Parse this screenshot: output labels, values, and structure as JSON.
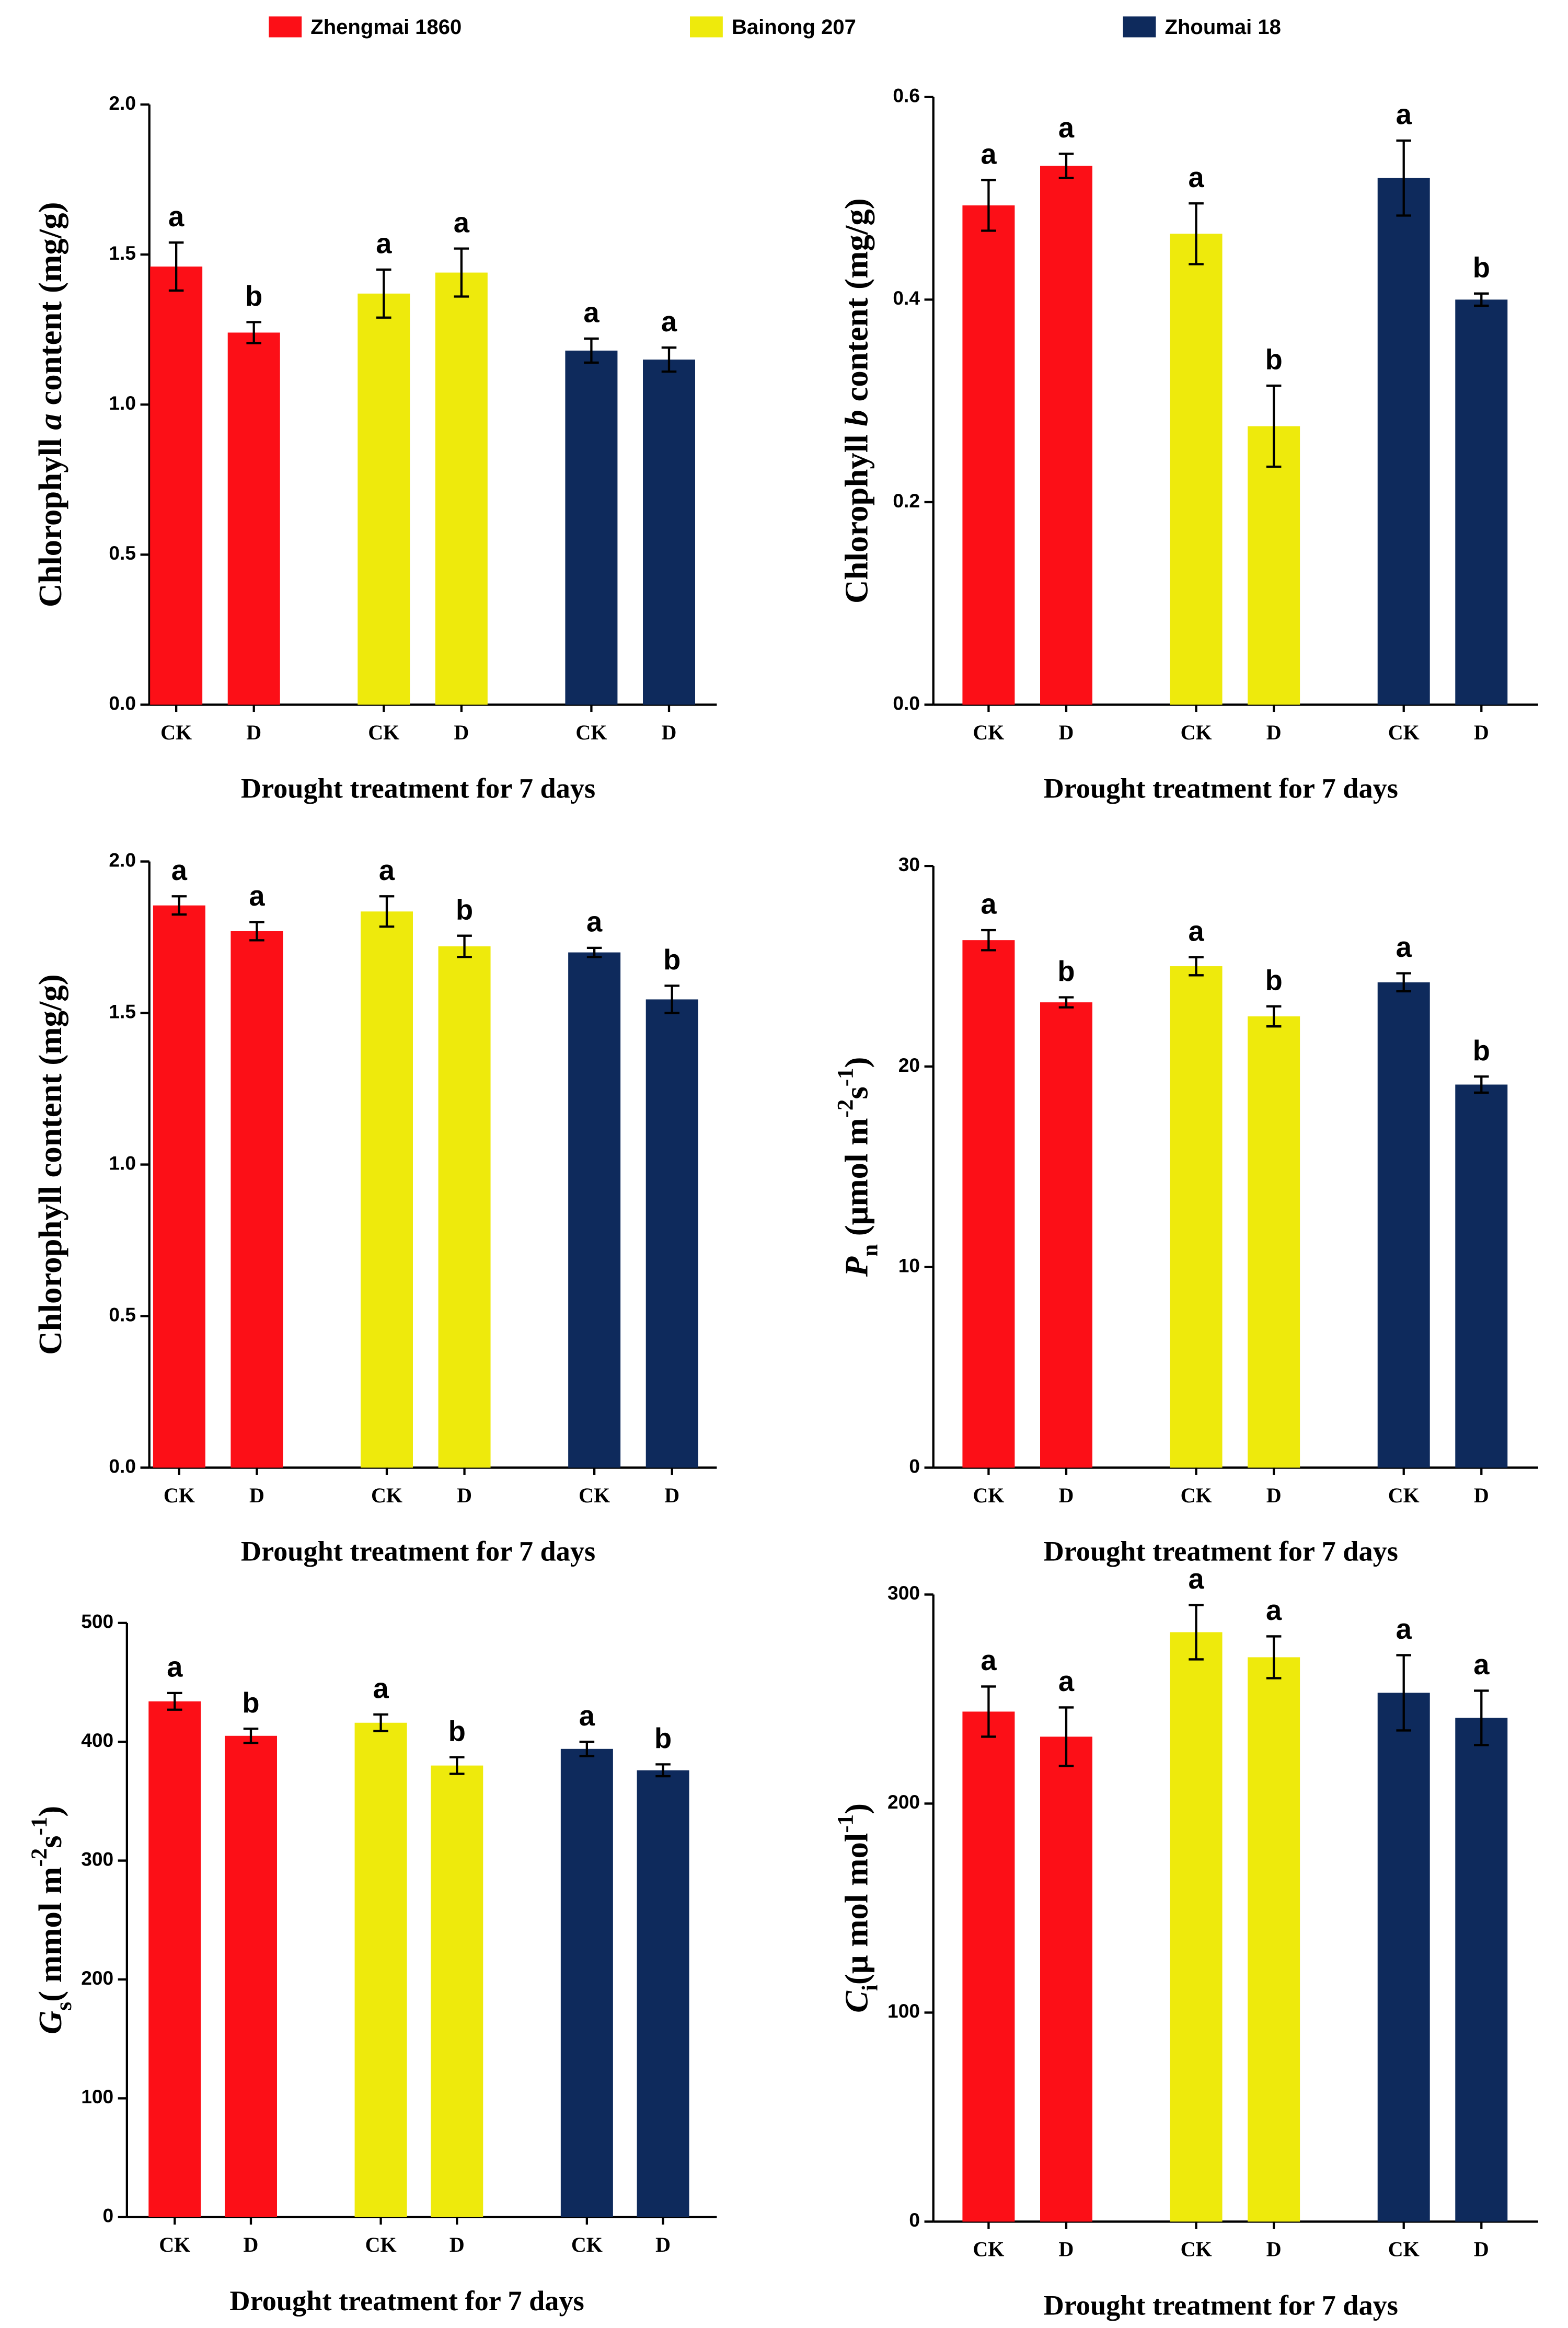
{
  "legend": [
    {
      "name": "Zhengmai 1860",
      "color": "#fc0f17"
    },
    {
      "name": "Bainong 207",
      "color": "#eeea0c"
    },
    {
      "name": "Zhoumai 18",
      "color": "#0e2a5c"
    }
  ],
  "chart_data": [
    {
      "type": "bar",
      "categories": [
        "CK",
        "D",
        "CK",
        "D",
        "CK",
        "D"
      ],
      "values": [
        1.46,
        1.24,
        1.37,
        1.44,
        1.18,
        1.15
      ],
      "errors": [
        0.08,
        0.035,
        0.08,
        0.08,
        0.04,
        0.04
      ],
      "annotations": [
        "a",
        "b",
        "a",
        "a",
        "a",
        "a"
      ],
      "ylim": [
        0,
        2
      ],
      "yticks": [
        {
          "value": 0,
          "label": "0.0"
        },
        0.5,
        {
          "value": 1,
          "label": "1.0"
        },
        1.5,
        {
          "value": 2,
          "label": "2.0"
        }
      ],
      "x_label": "Drought treatment for 7 days",
      "y_label": [
        {
          "text": "Chlorophyll "
        },
        {
          "text": "a",
          "style": "italic"
        },
        {
          "text": " content (mg/g)"
        }
      ]
    },
    {
      "type": "bar",
      "categories": [
        "CK",
        "D",
        "CK",
        "D",
        "CK",
        "D"
      ],
      "values": [
        0.493,
        0.532,
        0.465,
        0.275,
        0.52,
        0.4
      ],
      "errors": [
        0.025,
        0.012,
        0.03,
        0.04,
        0.037,
        0.006
      ],
      "annotations": [
        "a",
        "a",
        "a",
        "b",
        "a",
        "b"
      ],
      "ylim": [
        0,
        0.6
      ],
      "yticks": [
        {
          "value": 0,
          "label": "0.0"
        },
        0.2,
        0.4,
        0.6
      ],
      "x_label": "Drought treatment for 7 days",
      "y_label": [
        {
          "text": "Chlorophyll "
        },
        {
          "text": "b",
          "style": "italic"
        },
        {
          "text": " content (mg/g)"
        }
      ]
    },
    {
      "type": "bar",
      "categories": [
        "CK",
        "D",
        "CK",
        "D",
        "CK",
        "D"
      ],
      "values": [
        1.855,
        1.77,
        1.835,
        1.72,
        1.7,
        1.545
      ],
      "errors": [
        0.03,
        0.03,
        0.05,
        0.035,
        0.015,
        0.045
      ],
      "annotations": [
        "a",
        "a",
        "a",
        "b",
        "a",
        "b"
      ],
      "ylim": [
        0,
        2
      ],
      "yticks": [
        {
          "value": 0,
          "label": "0.0"
        },
        0.5,
        {
          "value": 1,
          "label": "1.0"
        },
        1.5,
        {
          "value": 2,
          "label": "2.0"
        }
      ],
      "x_label": "Drought treatment for 7 days",
      "y_label": [
        {
          "text": "Chlorophyll content (mg/g)"
        }
      ]
    },
    {
      "type": "bar",
      "categories": [
        "CK",
        "D",
        "CK",
        "D",
        "CK",
        "D"
      ],
      "values": [
        26.3,
        23.2,
        25.0,
        22.5,
        24.2,
        19.1
      ],
      "errors": [
        0.5,
        0.25,
        0.45,
        0.5,
        0.45,
        0.4
      ],
      "annotations": [
        "a",
        "b",
        "a",
        "b",
        "a",
        "b"
      ],
      "ylim": [
        0,
        30
      ],
      "yticks": [
        0,
        10,
        20,
        30
      ],
      "x_label": "Drought treatment for 7 days",
      "y_label": [
        {
          "text": "P",
          "style": "italic"
        },
        {
          "text": "n",
          "style": "sub"
        },
        {
          "text": " (μmol m"
        },
        {
          "text": "-2",
          "style": "sup"
        },
        {
          "text": "s"
        },
        {
          "text": "-1",
          "style": "sup"
        },
        {
          "text": ")"
        }
      ]
    },
    {
      "type": "bar",
      "categories": [
        "CK",
        "D",
        "CK",
        "D",
        "CK",
        "D"
      ],
      "values": [
        434,
        405,
        416,
        380,
        394,
        376
      ],
      "errors": [
        7,
        6,
        7,
        7,
        6,
        5
      ],
      "annotations": [
        "a",
        "b",
        "a",
        "b",
        "a",
        "b"
      ],
      "ylim": [
        0,
        500
      ],
      "yticks": [
        0,
        100,
        200,
        300,
        400,
        500
      ],
      "x_label": "Drought treatment for 7 days",
      "y_label": [
        {
          "text": "G",
          "style": "italic"
        },
        {
          "text": "s",
          "style": "sub"
        },
        {
          "text": "( mmol m"
        },
        {
          "text": "-2",
          "style": "sup"
        },
        {
          "text": "s"
        },
        {
          "text": "-1",
          "style": "sup"
        },
        {
          "text": ")"
        }
      ]
    },
    {
      "type": "bar",
      "categories": [
        "CK",
        "D",
        "CK",
        "D",
        "CK",
        "D"
      ],
      "values": [
        244,
        232,
        282,
        270,
        253,
        241
      ],
      "errors": [
        12,
        14,
        13,
        10,
        18,
        13
      ],
      "annotations": [
        "a",
        "a",
        "a",
        "a",
        "a",
        "a"
      ],
      "ylim": [
        0,
        300
      ],
      "yticks": [
        0,
        100,
        200,
        300
      ],
      "x_label": "Drought treatment for 7 days",
      "y_label": [
        {
          "text": "C",
          "style": "italic"
        },
        {
          "text": "i",
          "style": "sub"
        },
        {
          "text": "(μ mol mol"
        },
        {
          "text": "-1",
          "style": "sup"
        },
        {
          "text": ")"
        }
      ]
    }
  ]
}
